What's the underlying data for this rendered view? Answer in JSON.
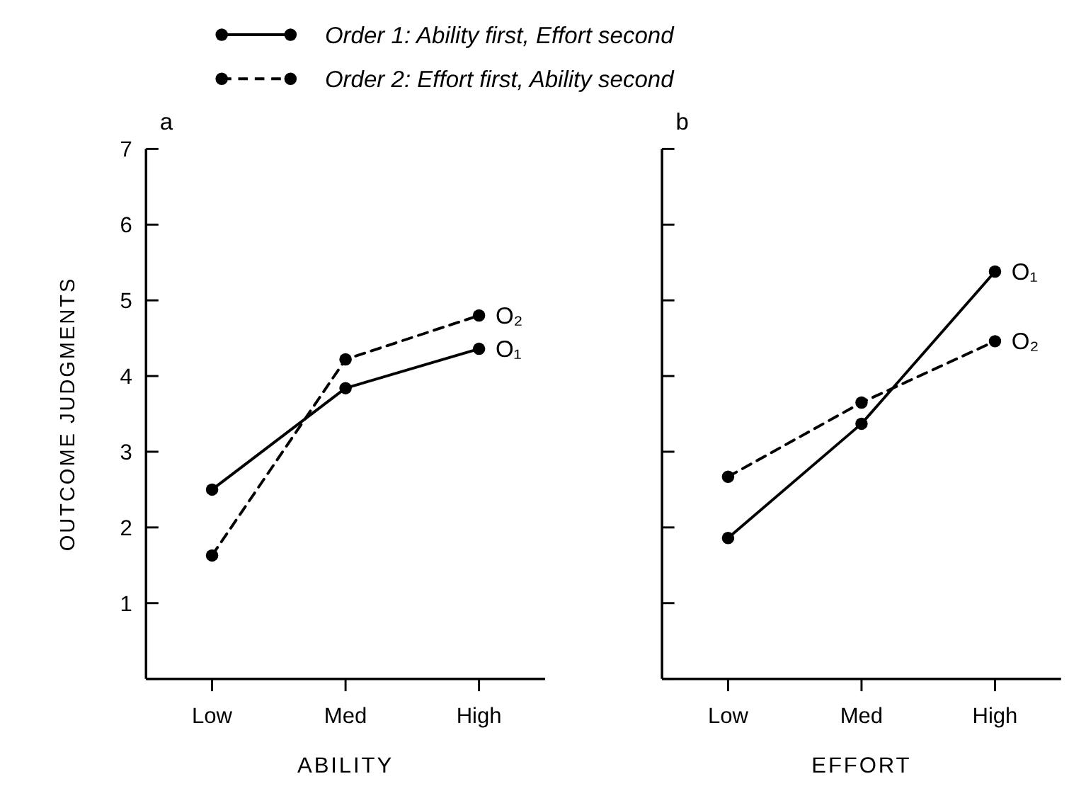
{
  "chart_data": [
    {
      "type": "line",
      "title": "a",
      "xlabel": "ABILITY",
      "ylabel": "OUTCOME JUDGMENTS",
      "categories": [
        "Low",
        "Med",
        "High"
      ],
      "ylim": [
        0,
        7
      ],
      "yticks": [
        {
          "value": 0,
          "label": null
        },
        1,
        2,
        3,
        4,
        5,
        6,
        7
      ],
      "legend": "top",
      "marker": "circle",
      "tick_labels": true,
      "series": [
        {
          "name": "Order 1: Ability first, Effort second",
          "color": "#000000",
          "line_style": "solid",
          "values": [
            2.5,
            3.84,
            4.36
          ]
        },
        {
          "name": "Order 2: Effort first, Ability second",
          "color": "#000000",
          "line_style": "dashed",
          "values": [
            1.63,
            4.22,
            4.8
          ]
        }
      ],
      "annotations": [
        {
          "text": "O₁",
          "x": "High",
          "y": 4.36
        },
        {
          "text": "O₂",
          "x": "High",
          "y": 4.8
        }
      ]
    },
    {
      "type": "line",
      "title": "b",
      "xlabel": "EFFORT",
      "categories": [
        "Low",
        "Med",
        "High"
      ],
      "ylim": [
        0,
        7
      ],
      "yticks": [
        {
          "value": 0,
          "label": null
        },
        {
          "value": 1,
          "label": null
        },
        {
          "value": 2,
          "label": null
        },
        {
          "value": 3,
          "label": null
        },
        {
          "value": 4,
          "label": null
        },
        {
          "value": 5,
          "label": null
        },
        {
          "value": 6,
          "label": null
        },
        {
          "value": 7,
          "label": null
        }
      ],
      "marker": "circle",
      "tick_labels": "x",
      "series": [
        {
          "color": "#000000",
          "line_style": "solid",
          "values": [
            1.86,
            3.37,
            5.38
          ]
        },
        {
          "color": "#000000",
          "line_style": "dashed",
          "values": [
            2.67,
            3.65,
            4.46
          ]
        }
      ],
      "annotations": [
        {
          "text": "O₁",
          "x": "High",
          "y": 5.38
        },
        {
          "text": "O₂",
          "x": "High",
          "y": 4.46
        }
      ]
    }
  ]
}
